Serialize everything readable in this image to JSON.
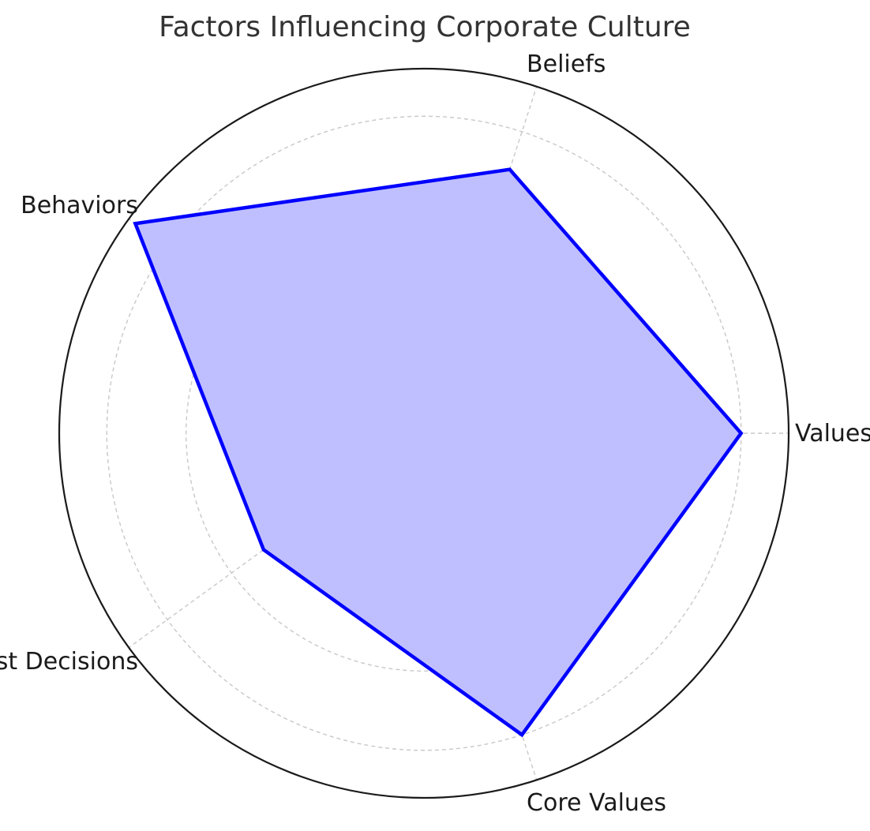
{
  "chart_data": {
    "type": "radar",
    "title": "Factors Influencing Corporate Culture",
    "categories": [
      "Values",
      "Beliefs",
      "Behaviors",
      "Past Decisions",
      "Core Values"
    ],
    "series": [
      {
        "values": [
          8,
          7,
          9,
          5,
          8
        ],
        "line_color": "#0000ff",
        "fill_color": "#bfbfff"
      }
    ],
    "rlim": [
      0,
      9.2
    ],
    "rings": [
      2,
      4,
      6,
      8
    ],
    "grid": true,
    "outer_circle_color": "#1a1a1a",
    "grid_color": "#c8c8c8"
  }
}
